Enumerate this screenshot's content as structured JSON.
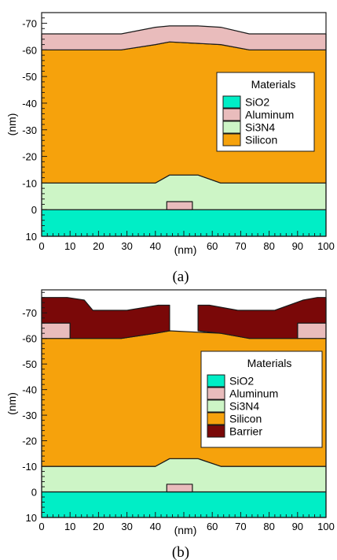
{
  "colors": {
    "SiO2": "#00eec6",
    "Aluminum": "#e9bcbc",
    "Si3N4": "#cdf5c6",
    "Silicon": "#f6a20c",
    "Barrier": "#7a0808",
    "outline": "#1a1a1a"
  },
  "chart_data": [
    {
      "type": "cross-section",
      "caption": "(a)",
      "xlabel": "(nm)",
      "ylabel": "(nm)",
      "x_ticks": [
        "0",
        "10",
        "20",
        "30",
        "40",
        "50",
        "60",
        "70",
        "80",
        "90",
        "100"
      ],
      "y_ticks": [
        "-70",
        "-60",
        "-50",
        "-40",
        "-30",
        "-20",
        "-10",
        "0",
        "10"
      ],
      "xlim": [
        0,
        100
      ],
      "ylim": [
        10,
        -74
      ],
      "legend": {
        "title": "Materials",
        "position": "center-right",
        "items": [
          "SiO2",
          "Aluminum",
          "Si3N4",
          "Silicon"
        ],
        "keys": [
          "SiO2",
          "Aluminum",
          "Si3N4",
          "Silicon"
        ]
      },
      "layers": [
        {
          "material": "SiO2",
          "points": [
            [
              0,
              0
            ],
            [
              100,
              0
            ],
            [
              100,
              10
            ],
            [
              0,
              10
            ]
          ]
        },
        {
          "material": "Si3N4",
          "points": [
            [
              0,
              -10
            ],
            [
              40,
              -10
            ],
            [
              45,
              -13
            ],
            [
              55,
              -13
            ],
            [
              63,
              -10
            ],
            [
              100,
              -10
            ],
            [
              100,
              0
            ],
            [
              0,
              0
            ]
          ]
        },
        {
          "material": "Aluminum",
          "points": [
            [
              44,
              0
            ],
            [
              53,
              0
            ],
            [
              53,
              -3
            ],
            [
              44,
              -3
            ]
          ]
        },
        {
          "material": "Silicon",
          "points": [
            [
              0,
              -10
            ],
            [
              40,
              -10
            ],
            [
              45,
              -13
            ],
            [
              55,
              -13
            ],
            [
              63,
              -10
            ],
            [
              100,
              -10
            ],
            [
              100,
              -60
            ],
            [
              73,
              -60
            ],
            [
              63,
              -62
            ],
            [
              45,
              -63
            ],
            [
              40,
              -62
            ],
            [
              28,
              -60
            ],
            [
              0,
              -60
            ]
          ]
        },
        {
          "material": "Aluminum",
          "points": [
            [
              0,
              -60
            ],
            [
              28,
              -60
            ],
            [
              40,
              -62
            ],
            [
              45,
              -63
            ],
            [
              63,
              -62
            ],
            [
              73,
              -60
            ],
            [
              100,
              -60
            ],
            [
              100,
              -66
            ],
            [
              73,
              -66
            ],
            [
              63,
              -68.5
            ],
            [
              55,
              -69
            ],
            [
              45,
              -69
            ],
            [
              40,
              -68.5
            ],
            [
              28,
              -66
            ],
            [
              0,
              -66
            ]
          ]
        }
      ]
    },
    {
      "type": "cross-section",
      "caption": "(b)",
      "xlabel": "(nm)",
      "ylabel": "(nm)",
      "x_ticks": [
        "0",
        "10",
        "20",
        "30",
        "40",
        "50",
        "60",
        "70",
        "80",
        "90",
        "100"
      ],
      "y_ticks": [
        "-70",
        "-60",
        "-50",
        "-40",
        "-30",
        "-20",
        "-10",
        "0",
        "10"
      ],
      "xlim": [
        0,
        100
      ],
      "ylim": [
        10,
        -79
      ],
      "legend": {
        "title": "Materials",
        "position": "center-right",
        "items": [
          "SiO2",
          "Aluminum",
          "Si3N4",
          "Silicon",
          "Barrier"
        ],
        "keys": [
          "SiO2",
          "Aluminum",
          "Si3N4",
          "Silicon",
          "Barrier"
        ]
      },
      "layers": [
        {
          "material": "SiO2",
          "points": [
            [
              0,
              0
            ],
            [
              100,
              0
            ],
            [
              100,
              10
            ],
            [
              0,
              10
            ]
          ]
        },
        {
          "material": "Si3N4",
          "points": [
            [
              0,
              -10
            ],
            [
              40,
              -10
            ],
            [
              45,
              -13
            ],
            [
              55,
              -13
            ],
            [
              63,
              -10
            ],
            [
              100,
              -10
            ],
            [
              100,
              0
            ],
            [
              0,
              0
            ]
          ]
        },
        {
          "material": "Aluminum",
          "points": [
            [
              44,
              0
            ],
            [
              53,
              0
            ],
            [
              53,
              -3
            ],
            [
              44,
              -3
            ]
          ]
        },
        {
          "material": "Silicon",
          "points": [
            [
              0,
              -10
            ],
            [
              40,
              -10
            ],
            [
              45,
              -13
            ],
            [
              55,
              -13
            ],
            [
              63,
              -10
            ],
            [
              100,
              -10
            ],
            [
              100,
              -60
            ],
            [
              73,
              -60
            ],
            [
              63,
              -62
            ],
            [
              45,
              -63
            ],
            [
              40,
              -62
            ],
            [
              28,
              -60
            ],
            [
              0,
              -60
            ]
          ]
        },
        {
          "material": "Aluminum",
          "points": [
            [
              0,
              -60
            ],
            [
              10,
              -60
            ],
            [
              10,
              -66
            ],
            [
              0,
              -66
            ]
          ]
        },
        {
          "material": "Aluminum",
          "points": [
            [
              90,
              -60
            ],
            [
              100,
              -60
            ],
            [
              100,
              -66
            ],
            [
              90,
              -66
            ]
          ]
        },
        {
          "material": "Barrier",
          "points": [
            [
              10,
              -60
            ],
            [
              28,
              -60
            ],
            [
              40,
              -62
            ],
            [
              45,
              -63
            ],
            [
              45,
              -73
            ],
            [
              41,
              -73
            ],
            [
              30,
              -71
            ],
            [
              18,
              -71
            ],
            [
              15,
              -75
            ],
            [
              9,
              -76
            ],
            [
              0,
              -76
            ],
            [
              0,
              -66
            ],
            [
              10,
              -66
            ]
          ]
        },
        {
          "material": "Barrier",
          "points": [
            [
              55,
              -63
            ],
            [
              63,
              -62
            ],
            [
              73,
              -60
            ],
            [
              90,
              -60
            ],
            [
              90,
              -66
            ],
            [
              100,
              -66
            ],
            [
              100,
              -76
            ],
            [
              97,
              -76
            ],
            [
              92,
              -75
            ],
            [
              82,
              -71
            ],
            [
              69,
              -71
            ],
            [
              59,
              -73
            ],
            [
              55,
              -73
            ]
          ]
        }
      ]
    }
  ]
}
